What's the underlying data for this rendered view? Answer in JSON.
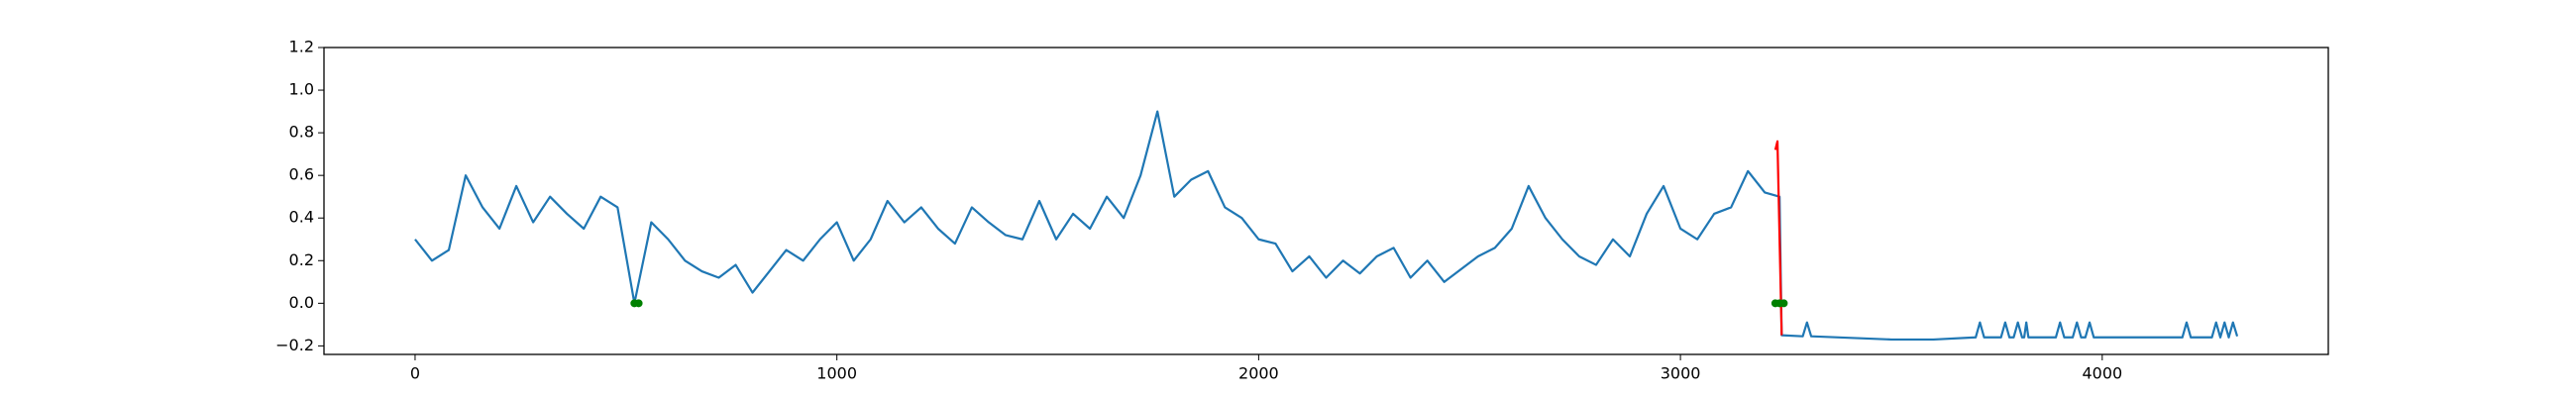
{
  "chart_data": {
    "type": "line",
    "xlim": [
      -216,
      4536
    ],
    "ylim": [
      -0.24,
      1.2
    ],
    "xticks": [
      0,
      1000,
      2000,
      3000,
      4000
    ],
    "yticks": [
      {
        "value": -0.2,
        "label": "−0.2"
      },
      {
        "value": 0,
        "label": "0.0"
      },
      0.2,
      0.4,
      0.6,
      0.8,
      {
        "value": 1,
        "label": "1.0"
      },
      1.2
    ],
    "series": [
      {
        "color": "#1f77b4",
        "type": "line",
        "x": [
          0,
          40,
          80,
          120,
          160,
          200,
          240,
          280,
          320,
          360,
          400,
          440,
          480,
          520,
          560,
          600,
          640,
          680,
          720,
          760,
          800,
          840,
          880,
          920,
          960,
          1000,
          1040,
          1080,
          1120,
          1160,
          1200,
          1240,
          1280,
          1320,
          1360,
          1400,
          1440,
          1480,
          1520,
          1560,
          1600,
          1640,
          1680,
          1720,
          1760,
          1800,
          1840,
          1880,
          1920,
          1960,
          2000,
          2040,
          2080,
          2120,
          2160,
          2200,
          2240,
          2280,
          2320,
          2360,
          2400,
          2440,
          2480,
          2520,
          2560,
          2600,
          2640,
          2680,
          2720,
          2760,
          2800,
          2840,
          2880,
          2920,
          2960,
          3000,
          3040,
          3080,
          3120,
          3160,
          3200,
          3235,
          3240,
          3290,
          3300,
          3310,
          3500,
          3600,
          3700,
          3710,
          3720,
          3760,
          3770,
          3780,
          3790,
          3800,
          3810,
          3815,
          3820,
          3825,
          3890,
          3900,
          3910,
          3930,
          3940,
          3950,
          3960,
          3970,
          3980,
          4190,
          4200,
          4210,
          4260,
          4270,
          4280,
          4290,
          4300,
          4310,
          4320
        ],
        "values": [
          0.3,
          0.2,
          0.25,
          0.6,
          0.45,
          0.35,
          0.55,
          0.38,
          0.5,
          0.42,
          0.35,
          0.5,
          0.45,
          0.0,
          0.38,
          0.3,
          0.2,
          0.15,
          0.12,
          0.18,
          0.05,
          0.15,
          0.25,
          0.2,
          0.3,
          0.38,
          0.2,
          0.3,
          0.48,
          0.38,
          0.45,
          0.35,
          0.28,
          0.45,
          0.38,
          0.32,
          0.3,
          0.48,
          0.3,
          0.42,
          0.35,
          0.5,
          0.4,
          0.6,
          0.9,
          0.5,
          0.58,
          0.62,
          0.45,
          0.4,
          0.3,
          0.28,
          0.15,
          0.22,
          0.12,
          0.2,
          0.14,
          0.22,
          0.26,
          0.12,
          0.2,
          0.1,
          0.16,
          0.22,
          0.26,
          0.35,
          0.55,
          0.4,
          0.3,
          0.22,
          0.18,
          0.3,
          0.22,
          0.42,
          0.55,
          0.35,
          0.3,
          0.42,
          0.45,
          0.62,
          0.52,
          0.5,
          -0.15,
          -0.155,
          -0.09,
          -0.155,
          -0.17,
          -0.17,
          -0.16,
          -0.09,
          -0.16,
          -0.16,
          -0.09,
          -0.16,
          -0.16,
          -0.09,
          -0.16,
          -0.16,
          -0.09,
          -0.16,
          -0.16,
          -0.09,
          -0.16,
          -0.16,
          -0.09,
          -0.16,
          -0.16,
          -0.09,
          -0.16,
          -0.16,
          -0.09,
          -0.16,
          -0.16,
          -0.09,
          -0.16,
          -0.09,
          -0.16,
          -0.09,
          -0.155
        ]
      },
      {
        "color": "#ff0000",
        "type": "line",
        "x": [
          3225,
          3230,
          3240
        ],
        "values": [
          0.72,
          0.76,
          -0.15
        ]
      },
      {
        "color": "#008000",
        "type": "scatter",
        "x": [
          520,
          530,
          3225,
          3235,
          3245
        ],
        "values": [
          0,
          0,
          0,
          0,
          0
        ]
      }
    ]
  }
}
